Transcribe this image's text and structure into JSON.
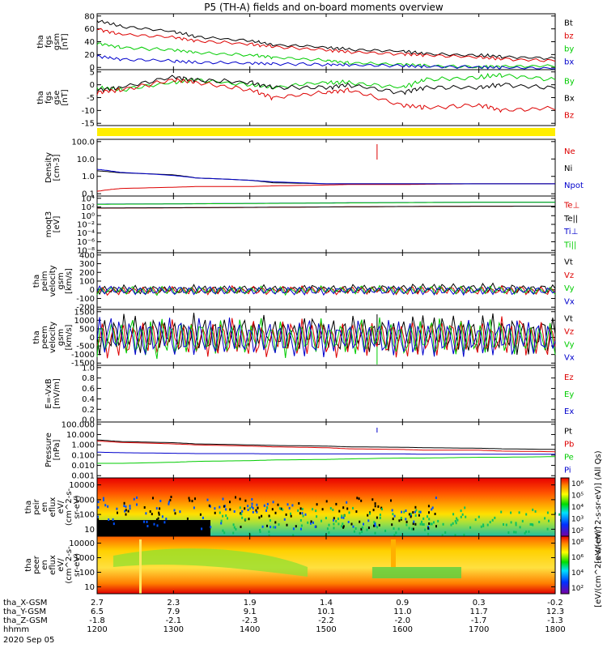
{
  "title": "P5 (TH-A) fields and on-board moments overview",
  "colors": {
    "black": "#000000",
    "red": "#dd0000",
    "green": "#00cc00",
    "blue": "#0000cc",
    "yellow": "#ffee00"
  },
  "panels": [
    {
      "id": "fgs_gsm",
      "ylabel": [
        "tha",
        "fgs",
        "gsm",
        "[nT]"
      ],
      "ticks": [
        "80",
        "60",
        "40",
        "20",
        "0"
      ],
      "legend": [
        {
          "label": "Bt",
          "color": "black"
        },
        {
          "label": "bz",
          "color": "red"
        },
        {
          "label": "by",
          "color": "green"
        },
        {
          "label": "bx",
          "color": "blue"
        }
      ]
    },
    {
      "id": "fgs_gse",
      "ylabel": [
        "tha",
        "fgs",
        "gse",
        "[nT]"
      ],
      "ticks": [
        "5",
        "0",
        "-5",
        "-10",
        "-15"
      ],
      "legend": [
        {
          "label": "By",
          "color": "green"
        },
        {
          "label": "Bx",
          "color": "black"
        },
        {
          "label": "Bz",
          "color": "red"
        }
      ]
    },
    {
      "id": "density",
      "ylabel": [
        "Density",
        "[cm-3]"
      ],
      "ticks": [
        "100.0",
        "10.0",
        "1.0",
        "0.1"
      ],
      "legend": [
        {
          "label": "Ne",
          "color": "red"
        },
        {
          "label": "Ni",
          "color": "black"
        },
        {
          "label": "Npot",
          "color": "blue"
        }
      ]
    },
    {
      "id": "temperature",
      "ylabel": [
        "moqt3",
        "[eV]"
      ],
      "ticks": [
        "10⁴",
        "10²",
        "10⁰",
        "10⁻²",
        "10⁻⁴",
        "10⁻⁶",
        "10⁻⁸"
      ],
      "legend": [
        {
          "label": "Te⊥",
          "color": "red"
        },
        {
          "label": "Te||",
          "color": "black"
        },
        {
          "label": "Ti⊥",
          "color": "blue"
        },
        {
          "label": "Ti||",
          "color": "green"
        }
      ]
    },
    {
      "id": "peim_velocity",
      "ylabel": [
        "tha",
        "peim",
        "velocity",
        "gsm",
        "[km/s]"
      ],
      "ticks": [
        "400",
        "300",
        "200",
        "100",
        "0",
        "-100",
        "-200"
      ],
      "legend": [
        {
          "label": "Vt",
          "color": "black"
        },
        {
          "label": "Vz",
          "color": "red"
        },
        {
          "label": "Vy",
          "color": "green"
        },
        {
          "label": "Vx",
          "color": "blue"
        }
      ]
    },
    {
      "id": "peem_velocity",
      "ylabel": [
        "tha",
        "peem",
        "velocity",
        "gsm",
        "[km/s]"
      ],
      "ticks": [
        "1500",
        "1000",
        "500",
        "0",
        "-500",
        "-1000",
        "-1500"
      ],
      "legend": [
        {
          "label": "Vt",
          "color": "black"
        },
        {
          "label": "Vz",
          "color": "red"
        },
        {
          "label": "Vy",
          "color": "green"
        },
        {
          "label": "Vx",
          "color": "blue"
        }
      ]
    },
    {
      "id": "efield",
      "ylabel": [
        "E=-VxB",
        "[mV/m]"
      ],
      "ticks": [
        "1.0",
        "0.8",
        "0.6",
        "0.4",
        "0.2",
        "0.0"
      ],
      "legend": [
        {
          "label": "Ez",
          "color": "red"
        },
        {
          "label": "Ey",
          "color": "green"
        },
        {
          "label": "Ex",
          "color": "blue"
        }
      ]
    },
    {
      "id": "pressure",
      "ylabel": [
        "Pressure",
        "[nPa]"
      ],
      "ticks": [
        "100.000",
        "10.000",
        "1.000",
        "0.100",
        "0.010",
        "0.001"
      ],
      "legend": [
        {
          "label": "Pt",
          "color": "black"
        },
        {
          "label": "Pb",
          "color": "red"
        },
        {
          "label": "Pe",
          "color": "green"
        },
        {
          "label": "Pi",
          "color": "blue"
        }
      ]
    },
    {
      "id": "peir_eflux",
      "ylabel": [
        "tha",
        "peir",
        "en",
        "eflux",
        "eV/",
        "(cm^2-s-",
        "sr-eV)"
      ],
      "ticks": [
        "10000",
        "1000",
        "100",
        "10"
      ],
      "colorbar": {
        "ticks": [
          "10⁶",
          "10⁵",
          "10⁴",
          "10³",
          "10²"
        ],
        "label": "[eV/(cm^2-s-sr-eV)] (All Qs)"
      }
    },
    {
      "id": "peer_eflux",
      "ylabel": [
        "tha",
        "peer",
        "en",
        "eflux",
        "eV/",
        "(cm^2-s-",
        "sr-eV)"
      ],
      "ticks": [
        "10000",
        "1000",
        "100",
        "10"
      ],
      "colorbar": {
        "ticks": [
          "10⁸",
          "10⁶",
          "10⁴",
          "10²"
        ],
        "label": "[eV/(cm^2-s-sr-eV)]"
      }
    }
  ],
  "xaxis": {
    "rows": [
      {
        "label": "tha_X-GSM",
        "values": [
          "2.7",
          "2.3",
          "1.9",
          "1.4",
          "0.9",
          "0.3",
          "-0.2"
        ]
      },
      {
        "label": "tha_Y-GSM",
        "values": [
          "6.5",
          "7.9",
          "9.1",
          "10.1",
          "11.0",
          "11.7",
          "12.3"
        ]
      },
      {
        "label": "tha_Z-GSM",
        "values": [
          "-1.8",
          "-2.1",
          "-2.3",
          "-2.2",
          "-2.0",
          "-1.7",
          "-1.3"
        ]
      },
      {
        "label": "hhmm",
        "values": [
          "1200",
          "1300",
          "1400",
          "1500",
          "1600",
          "1700",
          "1800"
        ]
      }
    ],
    "date": "2020 Sep 05"
  },
  "chart_data": [
    {
      "type": "line",
      "title": "P5 (TH-A) fields and on-board moments overview",
      "ylabel": "tha fgs gsm [nT]",
      "ylim": [
        0,
        85
      ],
      "x": [
        1200,
        1230,
        1300,
        1330,
        1400,
        1430,
        1500,
        1530,
        1600,
        1630,
        1700,
        1730,
        1800
      ],
      "series": [
        {
          "name": "Bt",
          "values": [
            75,
            66,
            58,
            50,
            44,
            38,
            34,
            31,
            28,
            24,
            22,
            20,
            17
          ]
        },
        {
          "name": "bz",
          "values": [
            62,
            54,
            49,
            44,
            39,
            35,
            30,
            27,
            24,
            22,
            19,
            16,
            14
          ]
        },
        {
          "name": "by",
          "values": [
            40,
            34,
            30,
            26,
            22,
            19,
            14,
            10,
            8,
            6,
            4,
            5,
            6
          ]
        },
        {
          "name": "bx",
          "values": [
            20,
            16,
            13,
            11,
            10,
            9,
            8,
            7,
            6,
            5,
            4,
            3,
            2
          ]
        }
      ]
    },
    {
      "type": "line",
      "ylabel": "tha fgs gse [nT]",
      "ylim": [
        -17,
        5
      ],
      "x": [
        1200,
        1230,
        1300,
        1330,
        1400,
        1430,
        1500,
        1530,
        1600,
        1630,
        1700,
        1730,
        1800
      ],
      "series": [
        {
          "name": "By",
          "values": [
            -2,
            -3,
            0,
            1,
            -1,
            -2,
            0,
            0,
            -2,
            1,
            2,
            3,
            1
          ]
        },
        {
          "name": "Bx",
          "values": [
            -3,
            -2,
            2,
            1,
            0,
            -2,
            -2,
            -1,
            -4,
            -2,
            -2,
            -1,
            -2
          ]
        },
        {
          "name": "Bz",
          "values": [
            -4,
            -3,
            1,
            0,
            -3,
            -6,
            -4,
            -3,
            -9,
            -10,
            -9,
            -11,
            -10
          ]
        }
      ]
    },
    {
      "type": "line",
      "ylabel": "Density [cm-3]",
      "ylim": [
        0.05,
        200
      ],
      "x": [
        1200,
        1230,
        1300,
        1330,
        1400,
        1430,
        1500,
        1530,
        1600,
        1630,
        1700,
        1730,
        1800
      ],
      "series": [
        {
          "name": "Ne",
          "values": [
            0.1,
            0.15,
            0.18,
            0.2,
            0.2,
            0.22,
            0.25,
            0.27,
            0.27,
            0.28,
            0.3,
            0.3,
            0.3
          ]
        },
        {
          "name": "Ni",
          "values": [
            2.0,
            1.5,
            1.1,
            0.7,
            0.5,
            0.35,
            0.3,
            0.3,
            0.3,
            0.3,
            0.3,
            0.3,
            0.3
          ]
        },
        {
          "name": "Npot",
          "values": [
            2.5,
            1.6,
            1.0,
            0.7,
            0.5,
            0.4,
            0.3,
            0.3,
            0.3,
            0.3,
            0.3,
            0.3,
            0.3
          ]
        }
      ]
    },
    {
      "type": "line",
      "ylabel": "moqt3 [eV]",
      "x": [
        1200,
        1300,
        1400,
        1500,
        1600,
        1700,
        1800
      ],
      "series": [
        {
          "name": "Te⊥",
          "values": [
            100,
            120,
            150,
            200,
            250,
            300,
            320
          ]
        },
        {
          "name": "Te||",
          "values": [
            110,
            130,
            160,
            200,
            260,
            300,
            320
          ]
        },
        {
          "name": "Ti⊥",
          "values": [
            1000,
            1200,
            1500,
            2000,
            2500,
            3000,
            3000
          ]
        },
        {
          "name": "Ti||",
          "values": [
            900,
            1100,
            1400,
            1800,
            2300,
            2800,
            2900
          ]
        }
      ]
    },
    {
      "type": "line",
      "ylabel": "tha peim velocity gsm [km/s]",
      "ylim": [
        -200,
        400
      ],
      "x": [
        1200,
        1300,
        1400,
        1500,
        1600,
        1700,
        1800
      ],
      "series": [
        {
          "name": "Vt",
          "values": [
            10,
            10,
            15,
            20,
            25,
            30,
            20
          ]
        },
        {
          "name": "Vz",
          "values": [
            0,
            0,
            5,
            5,
            5,
            0,
            0
          ]
        },
        {
          "name": "Vy",
          "values": [
            0,
            0,
            0,
            5,
            5,
            5,
            0
          ]
        },
        {
          "name": "Vx",
          "values": [
            0,
            0,
            0,
            0,
            0,
            0,
            0
          ]
        }
      ]
    },
    {
      "type": "line",
      "ylabel": "tha peem velocity gsm [km/s]",
      "ylim": [
        -1500,
        1500
      ],
      "x": [
        1200,
        1300,
        1400,
        1500,
        1600,
        1700,
        1800
      ],
      "series": [
        {
          "name": "Vt",
          "values": [
            150,
            150,
            180,
            220,
            200,
            180,
            150
          ]
        },
        {
          "name": "Vz",
          "values": [
            0,
            0,
            0,
            0,
            0,
            0,
            0
          ]
        },
        {
          "name": "Vy",
          "values": [
            0,
            0,
            0,
            0,
            0,
            0,
            0
          ]
        },
        {
          "name": "Vx",
          "values": [
            0,
            0,
            0,
            0,
            0,
            0,
            0
          ]
        }
      ]
    },
    {
      "type": "line",
      "ylabel": "E=-VxB [mV/m]",
      "ylim": [
        0,
        1
      ],
      "series": []
    },
    {
      "type": "line",
      "ylabel": "Pressure [nPa]",
      "ylim": [
        0.001,
        100
      ],
      "x": [
        1200,
        1230,
        1300,
        1330,
        1400,
        1430,
        1500,
        1530,
        1600,
        1630,
        1700,
        1730,
        1800
      ],
      "series": [
        {
          "name": "Pt",
          "values": [
            2.5,
            1.8,
            1.4,
            1.1,
            0.9,
            0.8,
            0.7,
            0.6,
            0.55,
            0.5,
            0.45,
            0.4,
            0.35
          ]
        },
        {
          "name": "Pb",
          "values": [
            2.0,
            1.5,
            1.1,
            0.9,
            0.7,
            0.6,
            0.5,
            0.4,
            0.35,
            0.3,
            0.3,
            0.25,
            0.22
          ]
        },
        {
          "name": "Pe",
          "values": [
            0.02,
            0.02,
            0.025,
            0.03,
            0.035,
            0.04,
            0.045,
            0.05,
            0.06,
            0.06,
            0.07,
            0.07,
            0.08
          ]
        },
        {
          "name": "Pi",
          "values": [
            0.2,
            0.18,
            0.16,
            0.15,
            0.15,
            0.14,
            0.14,
            0.14,
            0.14,
            0.13,
            0.13,
            0.13,
            0.13
          ]
        }
      ]
    },
    {
      "type": "heatmap",
      "ylabel": "tha peir en eflux eV/(cm^2-s-sr-eV)",
      "ylim": [
        5,
        30000
      ]
    },
    {
      "type": "heatmap",
      "ylabel": "tha peer en eflux eV/(cm^2-s-sr-eV)",
      "ylim": [
        5,
        30000
      ]
    }
  ]
}
